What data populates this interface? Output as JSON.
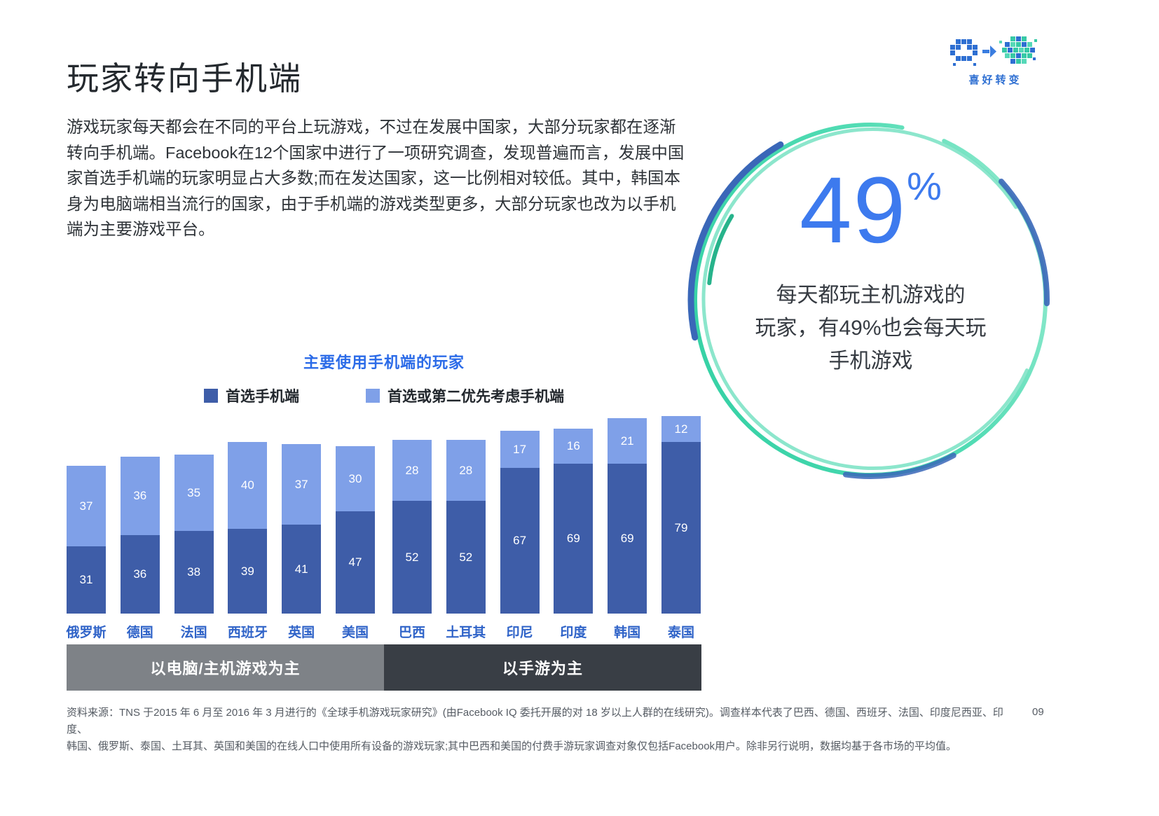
{
  "page": {
    "title": "玩家转向手机端",
    "paragraph": "游戏玩家每天都会在不同的平台上玩游戏，不过在发展中国家，大部分玩家都在逐渐转向手机端。Facebook在12个国家中进行了一项研究调查，发现普遍而言，发展中国家首选手机端的玩家明显占大多数;而在发达国家，这一比例相对较低。其中，韩国本身为电脑端相当流行的国家，由于手机端的游戏类型更多，大部分玩家也改为以手机端为主要游戏平台。",
    "page_number": "09",
    "source_lines": {
      "0": "资料来源：TNS 于2015 年 6 月至 2016 年 3 月进行的《全球手机游戏玩家研究》(由Facebook IQ 委托开展的对 18 岁以上人群的在线研究)。调查样本代表了巴西、德国、西班牙、法国、印度尼西亚、印度、",
      "1": "韩国、俄罗斯、泰国、土耳其、英国和美国的在线人口中使用所有设备的游戏玩家;其中巴西和美国的付费手游玩家调查对象仅包括Facebook用户。除非另行说明，数据均基于各市场的平均值。"
    }
  },
  "corner": {
    "label": "喜好转变"
  },
  "stat": {
    "value": "49",
    "percent": "%",
    "caption_lines": {
      "0": "每天都玩主机游戏的",
      "1": "玩家，有49%也会每天玩",
      "2": "手机游戏"
    },
    "number_color": "#3d7aee",
    "ring_teal": "#35d0a2",
    "ring_blue": "#3a67b8"
  },
  "chart_data": {
    "type": "bar",
    "stacked": true,
    "title": "主要使用手机端的玩家",
    "categories": [
      "俄罗斯",
      "德国",
      "法国",
      "西班牙",
      "英国",
      "美国",
      "巴西",
      "土耳其",
      "印尼",
      "印度",
      "韩国",
      "泰国"
    ],
    "series": [
      {
        "name": "首选手机端",
        "color": "#3e5da8",
        "values": [
          31,
          36,
          38,
          39,
          41,
          47,
          52,
          52,
          67,
          69,
          69,
          79
        ]
      },
      {
        "name": "首选或第二优先考虑手机端",
        "color": "#7fa0e8",
        "values": [
          37,
          36,
          35,
          40,
          37,
          30,
          28,
          28,
          17,
          16,
          21,
          12
        ]
      }
    ],
    "unit": "percent",
    "ylim": [
      0,
      100
    ],
    "grid": false,
    "legend_position": "top",
    "groups": [
      {
        "label": "以电脑/主机游戏为主",
        "color": "#7e8287",
        "categories": [
          "俄罗斯",
          "德国",
          "法国",
          "西班牙",
          "英国",
          "美国"
        ]
      },
      {
        "label": "以手游为主",
        "color": "#393e45",
        "categories": [
          "巴西",
          "土耳其",
          "印尼",
          "印度",
          "韩国",
          "泰国"
        ]
      }
    ]
  }
}
